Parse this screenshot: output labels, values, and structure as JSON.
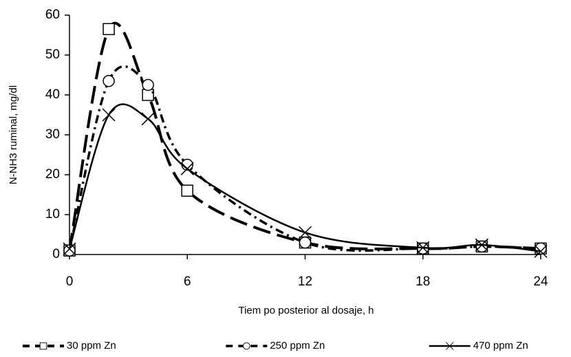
{
  "chart_data": {
    "type": "line",
    "x_label": "Tiem po posterior al dosaje, h",
    "y_label": "N-NH3 ruminal, mg/dl",
    "x": [
      0,
      2,
      4,
      6,
      12,
      18,
      21,
      24
    ],
    "series": [
      {
        "name": "30 ppm Zn",
        "color": "#000000",
        "values": [
          1,
          56.5,
          40,
          16,
          3,
          1.5,
          2,
          1.5
        ]
      },
      {
        "name": "250 ppm Zn",
        "color": "#000000",
        "values": [
          1,
          43.5,
          42.5,
          22.5,
          3,
          1.5,
          2,
          1.5
        ]
      },
      {
        "name": "470 ppm Zn",
        "color": "#000000",
        "values": [
          1.4,
          35,
          34,
          21.5,
          5.5,
          1.7,
          2.4,
          0.8
        ]
      }
    ],
    "xlim": [
      0,
      24
    ],
    "xticks": [
      0,
      6,
      12,
      18,
      24
    ],
    "ylim": [
      0,
      60
    ],
    "yticks": [
      0,
      10,
      20,
      30,
      40,
      50,
      60
    ],
    "grid": false,
    "legend": "bottom"
  }
}
